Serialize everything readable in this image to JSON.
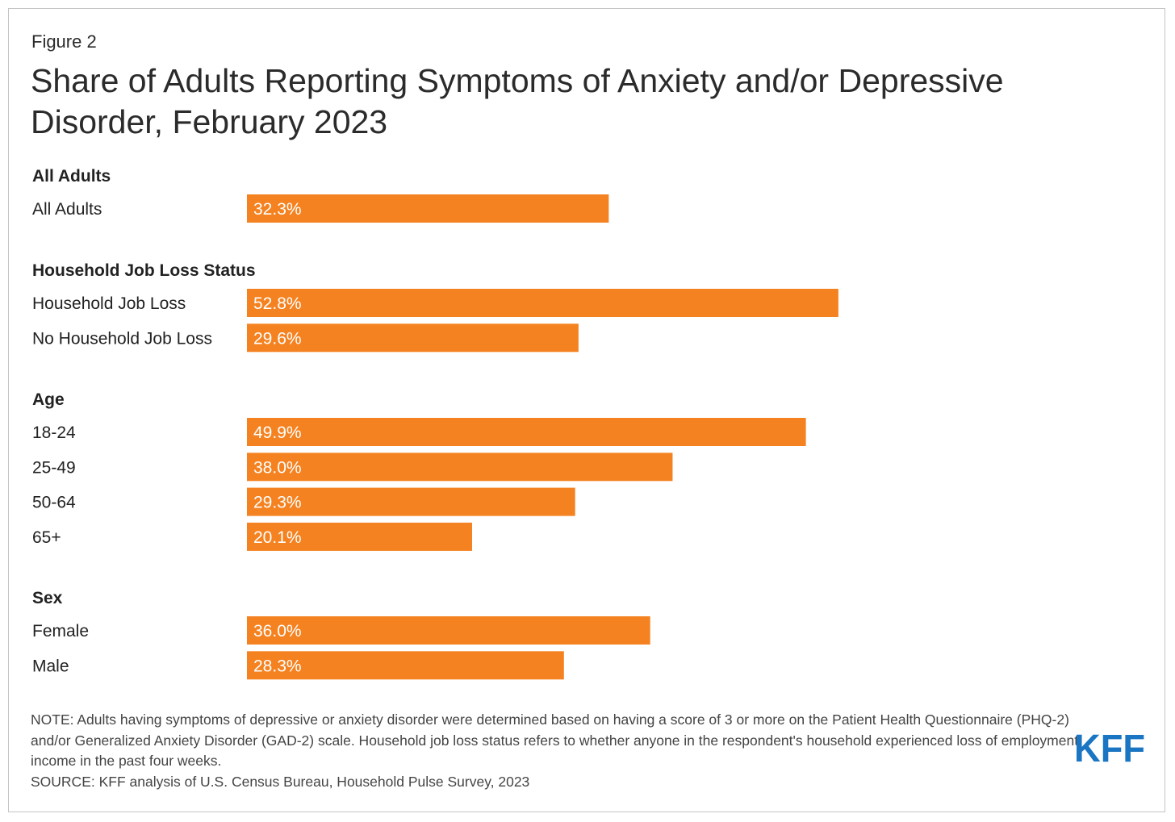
{
  "figure_label": "Figure 2",
  "title": "Share of Adults Reporting Symptoms of Anxiety and/or Depressive Disorder, February 2023",
  "colors": {
    "bar": "#f58220",
    "bar_text": "#ffffff",
    "logo": "#1a75c2"
  },
  "chart_data": {
    "type": "bar",
    "orientation": "horizontal",
    "title": "Share of Adults Reporting Symptoms of Anxiety and/or Depressive Disorder, February 2023",
    "xlabel": "",
    "ylabel": "",
    "xlim": [
      0,
      100
    ],
    "unit": "%",
    "grid": false,
    "groups": [
      {
        "name": "All Adults",
        "categories": [
          "All Adults"
        ],
        "values": [
          32.3
        ],
        "labels": [
          "32.3%"
        ]
      },
      {
        "name": "Household Job Loss Status",
        "categories": [
          "Household Job Loss",
          "No Household Job Loss"
        ],
        "values": [
          52.8,
          29.6
        ],
        "labels": [
          "52.8%",
          "29.6%"
        ]
      },
      {
        "name": "Age",
        "categories": [
          "18-24",
          "25-49",
          "50-64",
          "65+"
        ],
        "values": [
          49.9,
          38.0,
          29.3,
          20.1
        ],
        "labels": [
          "49.9%",
          "38.0%",
          "29.3%",
          "20.1%"
        ]
      },
      {
        "name": "Sex",
        "categories": [
          "Female",
          "Male"
        ],
        "values": [
          36.0,
          28.3
        ],
        "labels": [
          "36.0%",
          "28.3%"
        ]
      }
    ]
  },
  "notes": {
    "note": "NOTE: Adults having symptoms of depressive or anxiety disorder were determined based on having a score of 3 or more on the Patient Health Questionnaire (PHQ-2) and/or Generalized Anxiety Disorder (GAD-2) scale. Household job loss status refers to whether anyone in the respondent's household experienced loss of employment income in the past four weeks.",
    "source": "SOURCE: KFF analysis of U.S. Census Bureau, Household Pulse Survey, 2023"
  },
  "logo": {
    "text": "KFF",
    "icon": "kff-logo"
  }
}
